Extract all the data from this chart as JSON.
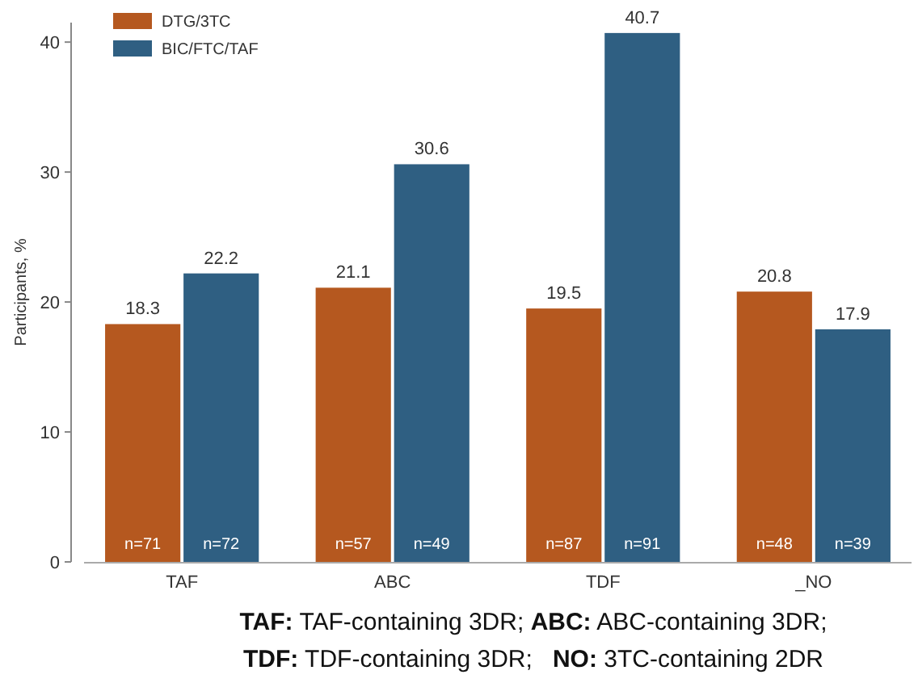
{
  "chart_data": {
    "type": "bar",
    "ylabel": "Participants, %",
    "categories": [
      "TAF",
      "ABC",
      "TDF",
      "_NO"
    ],
    "series": [
      {
        "name": "DTG/3TC",
        "color": "#b5581f",
        "values": [
          18.3,
          21.1,
          19.5,
          20.8
        ]
      },
      {
        "name": "BIC/FTC/TAF",
        "color": "#2f5f82",
        "values": [
          22.2,
          30.6,
          40.7,
          17.9
        ]
      }
    ],
    "ylim": [
      0,
      41.5
    ],
    "yticks": [
      0,
      10,
      20,
      30,
      40
    ],
    "data_labels": true,
    "legend": "top left",
    "grid": false,
    "annotations": [
      "n=71",
      "n=72",
      "n=57",
      "n=49",
      "n=87",
      "n=91",
      "n=48",
      "n=39",
      "TAF: TAF-containing 3DR; ABC: ABC-containing 3DR;",
      "TDF: TDF-containing 3DR;   NO: 3TC-containing 2DR"
    ]
  }
}
